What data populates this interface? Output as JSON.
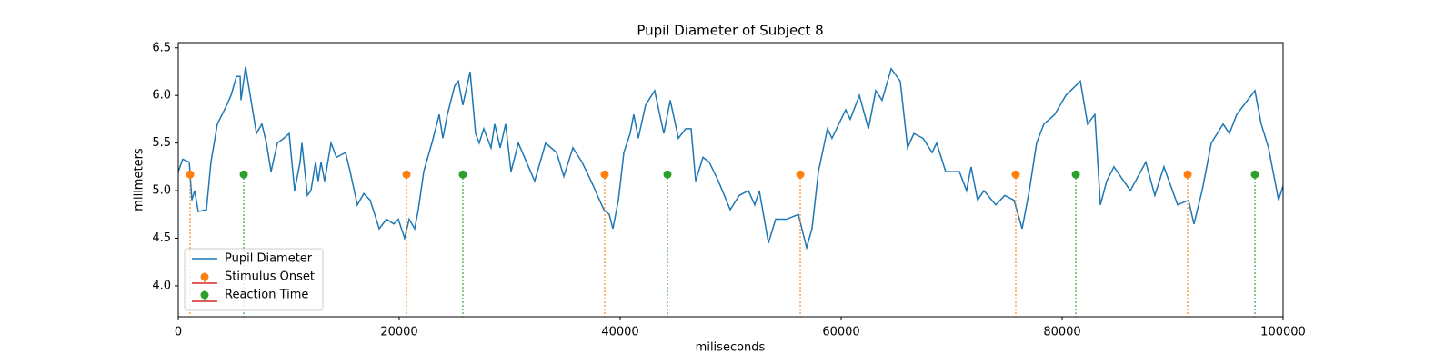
{
  "chart_data": {
    "type": "line",
    "title": "Pupil Diameter of Subject 8",
    "x_label": "miliseconds",
    "y_label": "milimeters",
    "xlim": [
      0,
      100000
    ],
    "ylim": [
      3.675,
      6.555
    ],
    "xticks": [
      0,
      20000,
      40000,
      60000,
      80000,
      100000
    ],
    "yticks": [
      {
        "value": 4,
        "label": "4.0"
      },
      4.5,
      {
        "value": 5,
        "label": "5.0"
      },
      5.5,
      {
        "value": 6,
        "label": "6.0"
      },
      6.5
    ],
    "grid": false,
    "legend": "lower left",
    "series": [
      {
        "name": "Pupil Diameter",
        "kind": "line",
        "color": "#1f77b4",
        "x": [
          0,
          400,
          1000,
          1230,
          1480,
          1810,
          2550,
          2960,
          3540,
          4400,
          4770,
          5270,
          5600,
          5680,
          6090,
          7080,
          7570,
          7980,
          8400,
          8970,
          9550,
          10040,
          10530,
          11030,
          11190,
          11690,
          12010,
          12430,
          12670,
          12920,
          13250,
          13830,
          14320,
          15140,
          15560,
          16210,
          16790,
          17370,
          18190,
          18850,
          19510,
          19920,
          20490,
          20900,
          21400,
          21730,
          22220,
          22960,
          23620,
          23950,
          24360,
          25020,
          25350,
          25760,
          26420,
          26910,
          27240,
          27650,
          28310,
          28640,
          29140,
          29630,
          30120,
          30780,
          32260,
          33250,
          34240,
          34900,
          35720,
          36540,
          37370,
          38520,
          39010,
          39340,
          39840,
          40330,
          40900,
          41230,
          41640,
          42300,
          43120,
          43950,
          44530,
          45270,
          45930,
          46420,
          46830,
          47490,
          48060,
          48890,
          49960,
          50780,
          51600,
          52180,
          52590,
          53420,
          54070,
          55060,
          56130,
          56870,
          57360,
          57940,
          58760,
          59170,
          60410,
          60820,
          61650,
          62470,
          63130,
          63700,
          64530,
          65350,
          66010,
          66580,
          67410,
          68230,
          68640,
          69460,
          70700,
          71350,
          71760,
          72350,
          72920,
          73990,
          74810,
          75640,
          76380,
          77030,
          77690,
          78350,
          79330,
          80330,
          81650,
          82300,
          82960,
          83460,
          84030,
          84690,
          86170,
          87570,
          88390,
          89210,
          90450,
          91440,
          91930,
          92670,
          93500,
          94570,
          95140,
          95800,
          97450,
          98020,
          98680,
          99590,
          100000
        ],
        "values": [
          5.2,
          5.33,
          5.3,
          4.9,
          5.0,
          4.78,
          4.8,
          5.3,
          5.7,
          5.9,
          6.0,
          6.2,
          6.2,
          5.95,
          6.3,
          5.6,
          5.7,
          5.5,
          5.2,
          5.5,
          5.55,
          5.6,
          5.0,
          5.3,
          5.5,
          4.95,
          5.0,
          5.3,
          5.1,
          5.3,
          5.1,
          5.5,
          5.35,
          5.4,
          5.2,
          4.85,
          4.97,
          4.9,
          4.6,
          4.7,
          4.65,
          4.7,
          4.5,
          4.7,
          4.6,
          4.8,
          5.2,
          5.5,
          5.8,
          5.55,
          5.8,
          6.1,
          6.15,
          5.9,
          6.25,
          5.6,
          5.5,
          5.65,
          5.45,
          5.7,
          5.45,
          5.7,
          5.2,
          5.5,
          5.1,
          5.5,
          5.4,
          5.15,
          5.45,
          5.3,
          5.1,
          4.8,
          4.75,
          4.6,
          4.9,
          5.4,
          5.6,
          5.8,
          5.55,
          5.9,
          6.05,
          5.6,
          5.95,
          5.55,
          5.65,
          5.65,
          5.1,
          5.35,
          5.3,
          5.1,
          4.8,
          4.95,
          5.0,
          4.85,
          5.0,
          4.45,
          4.7,
          4.7,
          4.75,
          4.4,
          4.6,
          5.2,
          5.65,
          5.55,
          5.85,
          5.75,
          6.0,
          5.65,
          6.05,
          5.95,
          6.28,
          6.15,
          5.45,
          5.6,
          5.55,
          5.4,
          5.5,
          5.2,
          5.2,
          5.0,
          5.25,
          4.9,
          5.0,
          4.85,
          4.95,
          4.9,
          4.6,
          5.0,
          5.5,
          5.7,
          5.8,
          6.0,
          6.15,
          5.7,
          5.8,
          4.85,
          5.1,
          5.25,
          5.0,
          5.3,
          4.95,
          5.25,
          4.85,
          4.9,
          4.65,
          5.0,
          5.5,
          5.7,
          5.6,
          5.8,
          6.05,
          5.7,
          5.45,
          4.9,
          5.05
        ]
      },
      {
        "name": "Stimulus Onset",
        "kind": "stem",
        "color": "#ff7f0e",
        "baseline_color": "#d62728",
        "x": [
          1070,
          20660,
          38600,
          56300,
          75800,
          91360
        ],
        "values": [
          5.17,
          5.17,
          5.17,
          5.17,
          5.17,
          5.17
        ]
      },
      {
        "name": "Reaction Time",
        "kind": "stem",
        "color": "#2ca02c",
        "baseline_color": "#d62728",
        "x": [
          5930,
          25760,
          44280,
          81240,
          97450
        ],
        "values": [
          5.17,
          5.17,
          5.17,
          5.17,
          5.17
        ]
      }
    ]
  }
}
